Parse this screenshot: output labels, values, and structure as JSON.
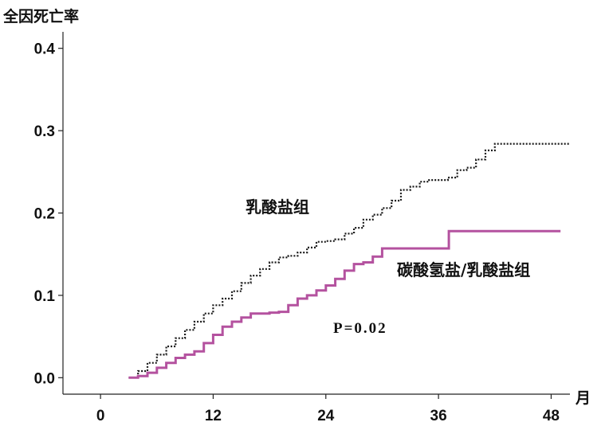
{
  "chart_data": {
    "type": "line",
    "title": "",
    "ylabel": "全因死亡率",
    "xlabel": "月",
    "xlim": [
      -4,
      50
    ],
    "ylim": [
      -0.02,
      0.42
    ],
    "xticks": [
      "0",
      "12",
      "24",
      "36",
      "48"
    ],
    "yticks": [
      "0.0",
      "0.1",
      "0.2",
      "0.3",
      "0.4"
    ],
    "annotation": "P=0.02",
    "series": [
      {
        "name": "乳酸盐组",
        "color": "#1a1a1a",
        "style": "dotted",
        "points": [
          [
            3,
            0.0
          ],
          [
            4,
            0.008
          ],
          [
            5,
            0.018
          ],
          [
            6,
            0.028
          ],
          [
            7,
            0.038
          ],
          [
            8,
            0.048
          ],
          [
            9,
            0.058
          ],
          [
            10,
            0.068
          ],
          [
            11,
            0.078
          ],
          [
            12,
            0.088
          ],
          [
            13,
            0.096
          ],
          [
            14,
            0.105
          ],
          [
            15,
            0.115
          ],
          [
            16,
            0.124
          ],
          [
            17,
            0.132
          ],
          [
            18,
            0.14
          ],
          [
            19,
            0.146
          ],
          [
            20,
            0.148
          ],
          [
            21,
            0.152
          ],
          [
            22,
            0.158
          ],
          [
            23,
            0.165
          ],
          [
            24,
            0.166
          ],
          [
            25,
            0.168
          ],
          [
            26,
            0.175
          ],
          [
            27,
            0.182
          ],
          [
            28,
            0.192
          ],
          [
            29,
            0.198
          ],
          [
            30,
            0.206
          ],
          [
            31,
            0.215
          ],
          [
            32,
            0.228
          ],
          [
            33,
            0.232
          ],
          [
            34,
            0.238
          ],
          [
            35,
            0.24
          ],
          [
            36,
            0.24
          ],
          [
            37,
            0.243
          ],
          [
            38,
            0.252
          ],
          [
            39,
            0.255
          ],
          [
            40,
            0.265
          ],
          [
            41,
            0.276
          ],
          [
            42,
            0.284
          ],
          [
            43,
            0.284
          ],
          [
            50,
            0.284
          ]
        ]
      },
      {
        "name": "碳酸氢盐/乳酸盐组",
        "color": "#b4529f",
        "style": "solid",
        "points": [
          [
            3,
            0.0
          ],
          [
            4,
            0.002
          ],
          [
            5,
            0.006
          ],
          [
            6,
            0.012
          ],
          [
            7,
            0.018
          ],
          [
            8,
            0.024
          ],
          [
            9,
            0.028
          ],
          [
            10,
            0.032
          ],
          [
            11,
            0.042
          ],
          [
            12,
            0.052
          ],
          [
            13,
            0.062
          ],
          [
            14,
            0.068
          ],
          [
            15,
            0.073
          ],
          [
            16,
            0.078
          ],
          [
            18,
            0.079
          ],
          [
            19,
            0.08
          ],
          [
            20,
            0.088
          ],
          [
            21,
            0.096
          ],
          [
            22,
            0.1
          ],
          [
            23,
            0.106
          ],
          [
            24,
            0.112
          ],
          [
            25,
            0.12
          ],
          [
            26,
            0.13
          ],
          [
            27,
            0.138
          ],
          [
            28,
            0.14
          ],
          [
            29,
            0.147
          ],
          [
            30,
            0.157
          ],
          [
            31,
            0.157
          ],
          [
            37,
            0.157
          ],
          [
            37.1,
            0.178
          ],
          [
            49,
            0.178
          ]
        ]
      }
    ],
    "series_labels": [
      "乳酸盐组",
      "碳酸氢盐/乳酸盐组"
    ]
  }
}
